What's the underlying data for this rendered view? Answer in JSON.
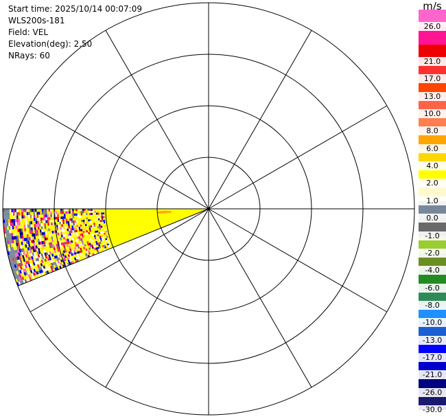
{
  "header": {
    "start_time": "Start time: 2025/10/14 00:07:09",
    "instrument": "WLS200s-181",
    "field": "Field: VEL",
    "elevation": "Elevation(deg): 2.50",
    "nrays": "NRays: 60"
  },
  "colorbar": {
    "unit": "m/s",
    "segments": [
      {
        "color": "#ff66cc",
        "label": "26.0"
      },
      {
        "color": "#ff1493",
        "label": ""
      },
      {
        "color": "#ee0000",
        "label": "21.0"
      },
      {
        "color": "#ff3030",
        "label": "17.0"
      },
      {
        "color": "#ff4500",
        "label": "13.0"
      },
      {
        "color": "#ff6347",
        "label": "10.0"
      },
      {
        "color": "#ff7f50",
        "label": "8.0"
      },
      {
        "color": "#ffa500",
        "label": "6.0"
      },
      {
        "color": "#ffd700",
        "label": "4.0"
      },
      {
        "color": "#ffff00",
        "label": "2.0"
      },
      {
        "color": "#fffacd",
        "label": "1.0"
      },
      {
        "color": "#778899",
        "label": "0.0"
      },
      {
        "color": "#696969",
        "label": "-1.0"
      },
      {
        "color": "#9acd32",
        "label": "-2.0"
      },
      {
        "color": "#6b8e23",
        "label": "-4.0"
      },
      {
        "color": "#228b22",
        "label": "-6.0"
      },
      {
        "color": "#2e8b57",
        "label": "-8.0"
      },
      {
        "color": "#1e90ff",
        "label": "-10.0"
      },
      {
        "color": "#1c5fd4",
        "label": "-13.0"
      },
      {
        "color": "#0000ff",
        "label": "-17.0"
      },
      {
        "color": "#0000cd",
        "label": "-21.0"
      },
      {
        "color": "#000080",
        "label": "-26.0"
      },
      {
        "color": "#191970",
        "label": "-30.0"
      }
    ]
  },
  "plot": {
    "type": "polar-ppi",
    "range_rings": 4,
    "azimuth_spokes_deg": 30,
    "sector_start_deg": 270,
    "sector_end_deg": 248,
    "near_field_color": "#ffff00"
  }
}
